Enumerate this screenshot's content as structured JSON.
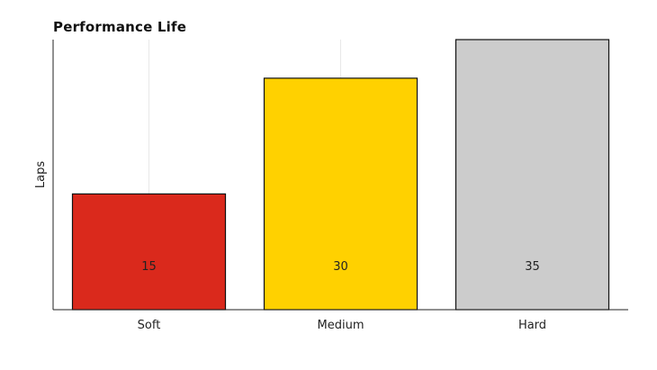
{
  "chart_data": {
    "type": "bar",
    "title": "Performance Life",
    "xlabel": "",
    "ylabel": "Laps",
    "categories": [
      "Soft",
      "Medium",
      "Hard"
    ],
    "values": [
      15,
      30,
      35
    ],
    "data_labels": [
      "15",
      "30",
      "35"
    ],
    "colors": [
      "#da291c",
      "#ffd100",
      "#cccccc"
    ],
    "edge_color": "#111111",
    "ylim": [
      0,
      35
    ],
    "grid": "vertical, light",
    "legend": "none"
  }
}
